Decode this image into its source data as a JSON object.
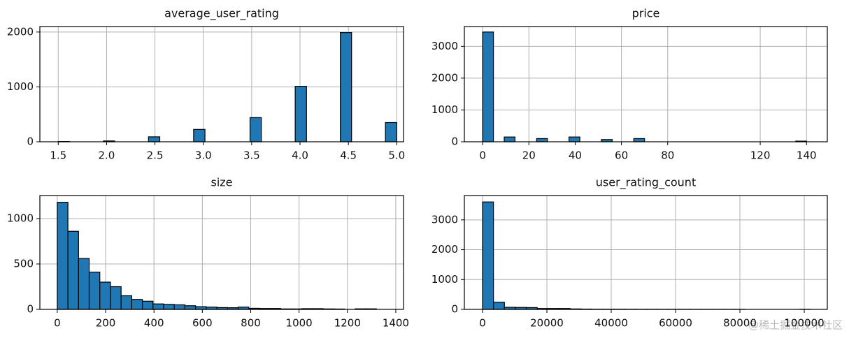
{
  "chart_data": [
    {
      "type": "histogram",
      "title": "average_user_rating",
      "color": "#1f77b4",
      "edgecolor": "#000000",
      "grid": true,
      "bins": [
        1.5,
        1.617,
        1.733,
        1.85,
        1.967,
        2.083,
        2.2,
        2.317,
        2.433,
        2.55,
        2.667,
        2.783,
        2.9,
        3.017,
        3.133,
        3.25,
        3.367,
        3.483,
        3.6,
        3.717,
        3.833,
        3.95,
        4.067,
        4.183,
        4.3,
        4.417,
        4.533,
        4.65,
        4.767,
        4.883,
        5.0
      ],
      "values": [
        5,
        0,
        0,
        0,
        15,
        0,
        0,
        0,
        90,
        0,
        0,
        0,
        225,
        0,
        0,
        0,
        0,
        440,
        0,
        0,
        0,
        1010,
        0,
        0,
        0,
        1990,
        0,
        0,
        0,
        350
      ],
      "xlim": [
        1.31,
        5.07
      ],
      "ylim": [
        0,
        2100
      ],
      "xticks": [
        1.5,
        {
          "value": 2,
          "label": "2.0"
        },
        2.5,
        {
          "value": 3,
          "label": "3.0"
        },
        3.5,
        {
          "value": 4,
          "label": "4.0"
        },
        4.5,
        {
          "value": 5,
          "label": "5.0"
        }
      ],
      "yticks": [
        0,
        1000,
        2000
      ]
    },
    {
      "type": "histogram",
      "title": "price",
      "color": "#1f77b4",
      "edgecolor": "#000000",
      "grid": true,
      "bins": [
        0,
        4.67,
        9.33,
        14,
        18.67,
        23.33,
        28,
        32.67,
        37.33,
        42,
        46.67,
        51.33,
        56,
        60.67,
        65.33,
        70,
        74.67,
        79.33,
        84,
        88.67,
        93.33,
        98,
        102.67,
        107.33,
        112,
        116.67,
        121.33,
        126,
        130.67,
        135.33,
        140
      ],
      "values": [
        3450,
        0,
        150,
        0,
        0,
        100,
        0,
        0,
        150,
        0,
        0,
        70,
        0,
        0,
        100,
        0,
        0,
        0,
        0,
        0,
        0,
        0,
        0,
        0,
        0,
        0,
        0,
        0,
        0,
        20
      ],
      "xlim": [
        -7.9,
        149
      ],
      "ylim": [
        0,
        3622
      ],
      "xticks": [
        0,
        20,
        40,
        60,
        80,
        120,
        140
      ],
      "yticks": [
        0,
        1000,
        2000,
        3000
      ]
    },
    {
      "type": "histogram",
      "title": "size",
      "color": "#1f77b4",
      "edgecolor": "#000000",
      "grid": true,
      "bins": [
        0,
        44,
        88,
        132,
        176,
        220,
        264,
        308,
        352,
        396,
        440,
        484,
        528,
        572,
        616,
        660,
        704,
        748,
        792,
        836,
        880,
        924,
        968,
        1012,
        1056,
        1100,
        1144,
        1188,
        1232,
        1276,
        1320
      ],
      "values": [
        1180,
        860,
        560,
        410,
        300,
        250,
        150,
        110,
        90,
        60,
        55,
        50,
        40,
        30,
        25,
        20,
        18,
        25,
        12,
        10,
        10,
        5,
        5,
        8,
        8,
        5,
        4,
        0,
        6,
        6
      ],
      "xlim": [
        -72,
        1432
      ],
      "ylim": [
        0,
        1254
      ],
      "xticks": [
        0,
        200,
        400,
        600,
        800,
        1000,
        1200,
        1400
      ],
      "yticks": [
        0,
        500,
        1000
      ]
    },
    {
      "type": "histogram",
      "title": "user_rating_count",
      "color": "#1f77b4",
      "edgecolor": "#000000",
      "grid": true,
      "bins": [
        0,
        3400,
        6800,
        10200,
        13600,
        17000,
        20400,
        23800,
        27200,
        30600,
        34000,
        37400,
        40800,
        44200,
        47600,
        51000,
        54400,
        57800,
        61200,
        64600,
        68000,
        71400,
        74800,
        78200,
        81600,
        85000,
        88400,
        91800,
        95200,
        98600,
        102000
      ],
      "values": [
        3600,
        240,
        70,
        65,
        60,
        30,
        30,
        30,
        15,
        10,
        5,
        5,
        5,
        4,
        3,
        3,
        2,
        2,
        2,
        1,
        1,
        1,
        1,
        1,
        0,
        0,
        0,
        0,
        0,
        1
      ],
      "xlim": [
        -5650,
        107170
      ],
      "ylim": [
        0,
        3815
      ],
      "xticks": [
        0,
        20000,
        40000,
        60000,
        80000,
        100000
      ],
      "yticks": [
        0,
        1000,
        2000,
        3000
      ]
    }
  ],
  "watermark": "@稀土掘金技术社区"
}
